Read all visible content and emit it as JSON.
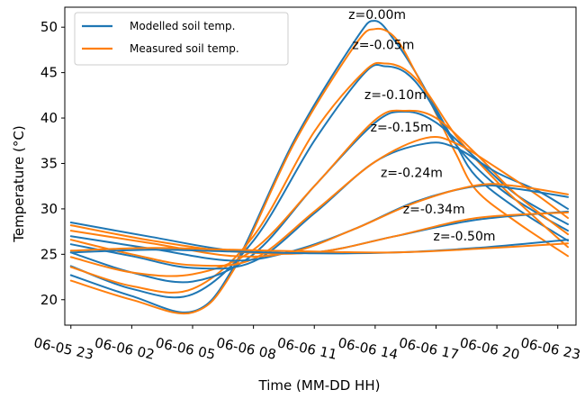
{
  "chart_data": {
    "type": "line",
    "xlabel": "Time (MM-DD HH)",
    "ylabel": "Temperature (°C)",
    "xlim": [
      -0.3,
      24.9
    ],
    "ylim": [
      17.2,
      52.2
    ],
    "grid": false,
    "legend_position": "top-left",
    "x_tick_values": [
      0,
      3,
      6,
      9,
      12,
      15,
      18,
      21,
      24
    ],
    "x_tick_labels": [
      "06-05 23",
      "06-06 02",
      "06-06 05",
      "06-06 08",
      "06-06 11",
      "06-06 14",
      "06-06 17",
      "06-06 20",
      "06-06 23"
    ],
    "y_ticks": [
      20,
      25,
      30,
      35,
      40,
      45,
      50
    ],
    "legend": [
      "Modelled soil temp.",
      "Measured soil temp."
    ],
    "colors": {
      "modelled": "#1f77b4",
      "measured": "#ff7f0e"
    },
    "depth_labels": [
      {
        "text": "z=0.00m",
        "x": 15.1,
        "y": 50.9
      },
      {
        "text": "z=-0.05m",
        "x": 15.4,
        "y": 47.6
      },
      {
        "text": "z=-0.10m",
        "x": 16.0,
        "y": 42.1
      },
      {
        "text": "z=-0.15m",
        "x": 16.3,
        "y": 38.5
      },
      {
        "text": "z=-0.24m",
        "x": 16.8,
        "y": 33.5
      },
      {
        "text": "z=-0.34m",
        "x": 17.9,
        "y": 29.5
      },
      {
        "text": "z=-0.50m",
        "x": 19.4,
        "y": 26.5
      }
    ],
    "series": [
      {
        "kind": "modelled",
        "x": [
          0,
          3,
          6,
          8,
          11,
          14,
          15,
          16,
          17,
          18,
          19,
          20,
          22,
          24.5
        ],
        "y": [
          22.7,
          20.4,
          18.7,
          23.5,
          37.5,
          48.5,
          50.7,
          48.4,
          45,
          41,
          37,
          33.5,
          30,
          26.5
        ]
      },
      {
        "kind": "measured",
        "x": [
          0,
          3,
          6,
          8,
          11,
          14,
          15,
          16,
          17,
          18,
          19,
          20,
          22,
          24.5
        ],
        "y": [
          22.1,
          20,
          18.6,
          23.2,
          37.2,
          48,
          49.8,
          48.8,
          45,
          40.5,
          36,
          32,
          28.5,
          24.8
        ]
      },
      {
        "kind": "modelled",
        "x": [
          0,
          3,
          6,
          9,
          12,
          14.5,
          15.5,
          16.5,
          17.5,
          19,
          21,
          23,
          24.5
        ],
        "y": [
          23.7,
          21.2,
          20.6,
          26.5,
          37.5,
          45,
          45.7,
          45,
          42.5,
          37,
          32.5,
          29.5,
          27.6
        ]
      },
      {
        "kind": "measured",
        "x": [
          0,
          3,
          6,
          9,
          12,
          14.5,
          15.5,
          16.5,
          17.5,
          19,
          21,
          23,
          24.5
        ],
        "y": [
          23.6,
          21.5,
          21.2,
          27,
          38.5,
          45.2,
          46,
          45.3,
          43,
          38,
          33,
          28.8,
          25.8
        ]
      },
      {
        "kind": "modelled",
        "x": [
          0,
          3,
          6,
          9,
          12,
          15,
          16.5,
          18,
          20,
          22,
          24.5
        ],
        "y": [
          25.2,
          23,
          22,
          25,
          32.5,
          39.5,
          40.7,
          39.5,
          35.5,
          31.5,
          28.3
        ]
      },
      {
        "kind": "measured",
        "x": [
          0,
          3,
          6,
          9,
          12,
          15,
          16.5,
          18,
          20,
          22,
          24.5
        ],
        "y": [
          24.7,
          23,
          22.8,
          25.5,
          32.5,
          39.8,
          40.8,
          40,
          36,
          31.5,
          27.2
        ]
      },
      {
        "kind": "modelled",
        "x": [
          0,
          3,
          6,
          9,
          12,
          15,
          17.5,
          19,
          21,
          23,
          24.5
        ],
        "y": [
          26.1,
          24.8,
          23.5,
          24.2,
          29.5,
          35.2,
          37.2,
          36.7,
          34,
          32,
          30
        ]
      },
      {
        "kind": "measured",
        "x": [
          0,
          3,
          6,
          9,
          12,
          15,
          17.5,
          19,
          21,
          23,
          24.5
        ],
        "y": [
          26.6,
          25,
          23.8,
          24.5,
          29.7,
          35.2,
          37.8,
          37.2,
          34.5,
          31.5,
          29
        ]
      },
      {
        "kind": "modelled",
        "x": [
          0,
          4,
          8,
          11,
          14,
          17,
          20,
          22,
          24.5
        ],
        "y": [
          27,
          25.6,
          24.3,
          25.4,
          27.8,
          30.8,
          32.5,
          32.2,
          31.3
        ]
      },
      {
        "kind": "measured",
        "x": [
          0,
          4,
          8,
          11,
          14,
          17,
          20,
          22,
          24.5
        ],
        "y": [
          27.6,
          26.2,
          24.8,
          25.3,
          27.8,
          30.7,
          32.6,
          32.5,
          31.6
        ]
      },
      {
        "kind": "modelled",
        "x": [
          0,
          4,
          8,
          12,
          16,
          20,
          24.5
        ],
        "y": [
          28.5,
          26.9,
          25.4,
          25.2,
          27,
          28.8,
          29.7
        ]
      },
      {
        "kind": "measured",
        "x": [
          0,
          4,
          8,
          12,
          16,
          20,
          24.5
        ],
        "y": [
          28.2,
          26.5,
          25.3,
          25.2,
          27,
          29,
          29.6
        ]
      },
      {
        "kind": "modelled",
        "x": [
          0,
          4,
          8,
          12,
          16,
          20,
          24.5
        ],
        "y": [
          25.2,
          25.5,
          25.3,
          25.1,
          25.2,
          25.7,
          26.6
        ]
      },
      {
        "kind": "measured",
        "x": [
          0,
          4,
          8,
          12,
          16,
          20,
          24.5
        ],
        "y": [
          25.4,
          25.7,
          25.5,
          25.3,
          25.2,
          25.6,
          26.2
        ]
      }
    ]
  }
}
